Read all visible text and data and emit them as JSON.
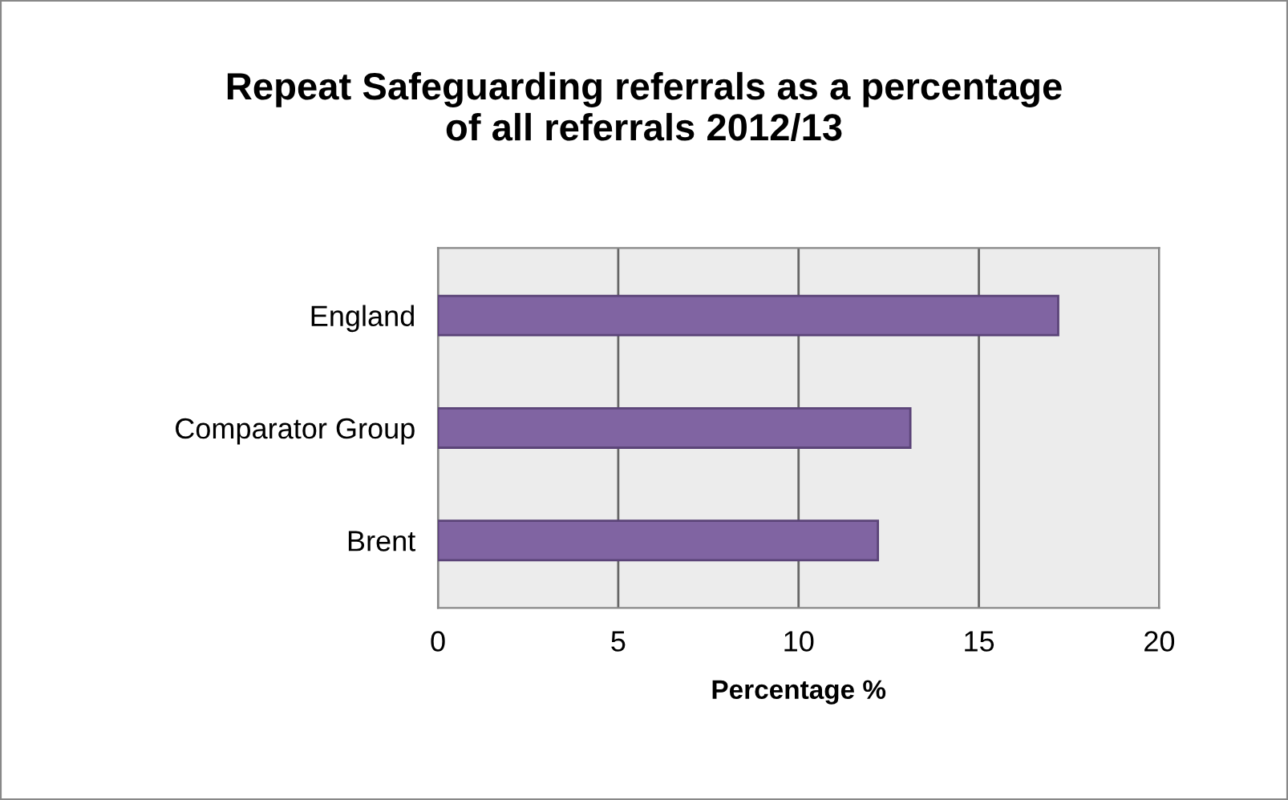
{
  "chart_data": {
    "type": "bar",
    "orientation": "horizontal",
    "title": "Repeat Safeguarding referrals as a percentage\nof all referrals 2012/13",
    "xlabel": "Percentage %",
    "categories": [
      "England",
      "Comparator Group",
      "Brent"
    ],
    "values": [
      17.2,
      13.1,
      12.2
    ],
    "color": "#8064a2",
    "xlim": [
      0,
      20
    ],
    "xticks": [
      0,
      5,
      10,
      15,
      20
    ],
    "grid": "x"
  }
}
